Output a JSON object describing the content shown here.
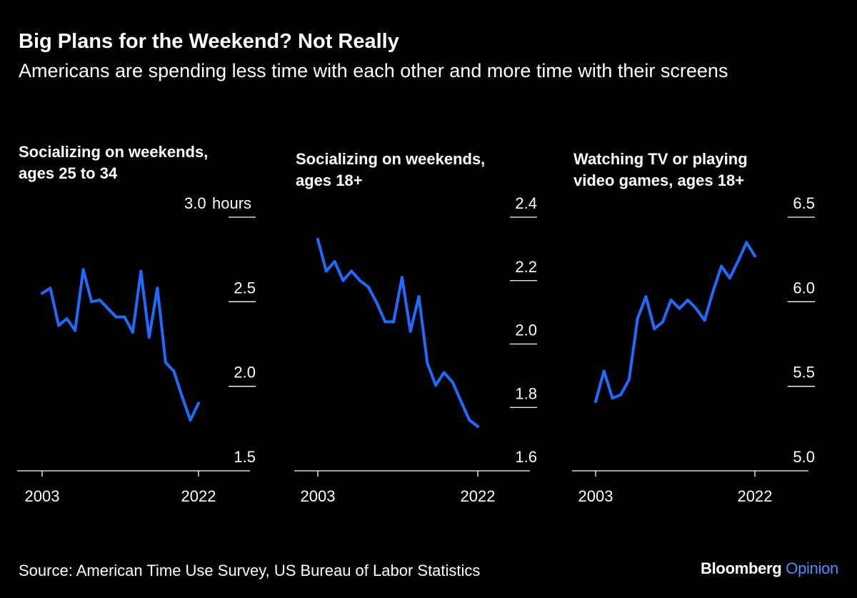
{
  "header": {
    "title": "Big Plans for the Weekend? Not Really",
    "subtitle": "Americans are spending less time with each other and more time with their screens"
  },
  "footer": {
    "source": "Source: American Time Use Survey, US Bureau of Labor Statistics",
    "brand_main": "Bloomberg",
    "brand_accent": "Opinion"
  },
  "colors": {
    "line": "#1f6bff",
    "background": "#000000",
    "axis": "#ffffff"
  },
  "chart_data": [
    {
      "type": "line",
      "title_lines": [
        "Socializing on weekends,",
        "ages 25 to 34"
      ],
      "x": [
        2003,
        2004,
        2005,
        2006,
        2007,
        2008,
        2009,
        2010,
        2011,
        2012,
        2013,
        2014,
        2015,
        2016,
        2017,
        2018,
        2019,
        2020,
        2021,
        2022
      ],
      "series": [
        {
          "values": [
            2.55,
            2.58,
            2.36,
            2.4,
            2.33,
            2.69,
            2.5,
            2.51,
            2.46,
            2.41,
            2.41,
            2.32,
            2.68,
            2.29,
            2.58,
            2.14,
            2.09,
            1.94,
            1.8,
            1.9
          ]
        }
      ],
      "ylim": [
        1.5,
        3.0
      ],
      "yticks": [
        1.5,
        2.0,
        2.5,
        3.0
      ],
      "ytick_labels": [
        "1.5",
        "2.0",
        "2.5",
        "3.0"
      ],
      "yunit": "hours",
      "xticks": [
        2003,
        2022
      ],
      "xtick_labels": [
        "2003",
        "2022"
      ],
      "grid": false
    },
    {
      "type": "line",
      "title_lines": [
        "Socializing on weekends,",
        "ages 18+"
      ],
      "x": [
        2003,
        2004,
        2005,
        2006,
        2007,
        2008,
        2009,
        2010,
        2011,
        2012,
        2013,
        2014,
        2015,
        2016,
        2017,
        2018,
        2019,
        2020,
        2021,
        2022
      ],
      "series": [
        {
          "values": [
            2.33,
            2.23,
            2.26,
            2.2,
            2.23,
            2.2,
            2.18,
            2.13,
            2.07,
            2.07,
            2.21,
            2.04,
            2.15,
            1.94,
            1.87,
            1.91,
            1.88,
            1.82,
            1.76,
            1.74
          ]
        }
      ],
      "ylim": [
        1.6,
        2.4
      ],
      "yticks": [
        1.6,
        1.8,
        2.0,
        2.2,
        2.4
      ],
      "ytick_labels": [
        "1.6",
        "1.8",
        "2.0",
        "2.2",
        "2.4"
      ],
      "xticks": [
        2003,
        2022
      ],
      "xtick_labels": [
        "2003",
        "2022"
      ],
      "grid": false
    },
    {
      "type": "line",
      "title_lines": [
        "Watching TV or playing",
        "video games, ages 18+"
      ],
      "x": [
        2003,
        2004,
        2005,
        2006,
        2007,
        2008,
        2009,
        2010,
        2011,
        2012,
        2013,
        2014,
        2015,
        2016,
        2017,
        2018,
        2019,
        2020,
        2021,
        2022
      ],
      "series": [
        {
          "values": [
            5.41,
            5.59,
            5.43,
            5.45,
            5.54,
            5.9,
            6.03,
            5.84,
            5.88,
            6.01,
            5.96,
            6.01,
            5.96,
            5.89,
            6.06,
            6.21,
            6.14,
            6.24,
            6.35,
            6.27
          ]
        }
      ],
      "ylim": [
        5.0,
        6.5
      ],
      "yticks": [
        5.0,
        5.5,
        6.0,
        6.5
      ],
      "ytick_labels": [
        "5.0",
        "5.5",
        "6.0",
        "6.5"
      ],
      "xticks": [
        2003,
        2022
      ],
      "xtick_labels": [
        "2003",
        "2022"
      ],
      "grid": false
    }
  ]
}
